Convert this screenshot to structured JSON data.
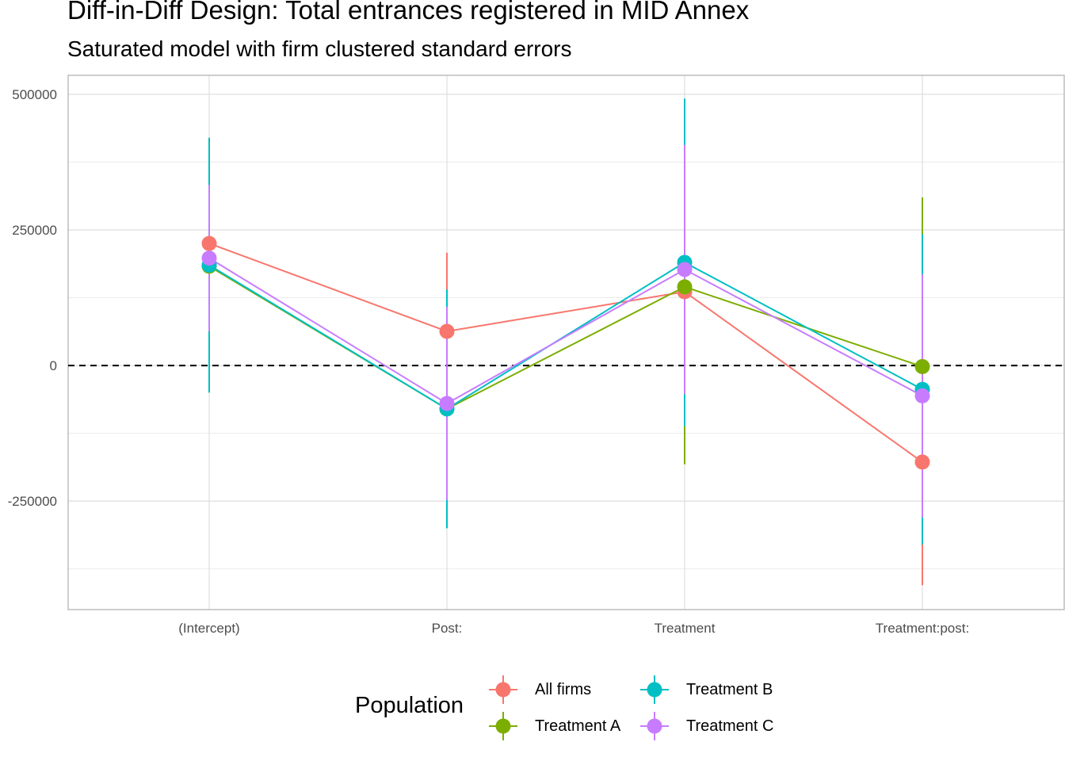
{
  "chart_data": {
    "type": "line",
    "title": "Diff-in-Diff Design: Total entrances registered in MID Annex",
    "subtitle": "Saturated model with firm clustered standard errors",
    "xlabel": "",
    "ylabel": "",
    "categories": [
      "(Intercept)",
      "Post:",
      "Treatment",
      "Treatment:post:"
    ],
    "y_ticks": [
      500000,
      250000,
      0,
      -250000
    ],
    "y_tick_labels": [
      "500000",
      "250000",
      "0",
      "-250000"
    ],
    "ylim": [
      -450000,
      535000
    ],
    "reference_line": {
      "y": 0,
      "style": "dashed",
      "color": "#000000"
    },
    "grid": true,
    "legend": {
      "title": "Population",
      "position": "bottom"
    },
    "series": [
      {
        "name": "All firms",
        "color": "#F8766D",
        "values": [
          225000,
          63000,
          136000,
          -178000
        ],
        "lower": [
          117000,
          -83000,
          -137000,
          -405000
        ],
        "upper": [
          332000,
          208000,
          409000,
          48000
        ]
      },
      {
        "name": "Treatment A",
        "color": "#7CAE00",
        "values": [
          183000,
          -80000,
          145000,
          -2000
        ],
        "lower": [
          94000,
          -163000,
          -182000,
          -195000
        ],
        "upper": [
          272000,
          3000,
          472000,
          310000
        ]
      },
      {
        "name": "Treatment B",
        "color": "#00BFC4",
        "values": [
          185000,
          -80000,
          190000,
          -44000
        ],
        "lower": [
          -50000,
          -300000,
          -112000,
          -330000
        ],
        "upper": [
          420000,
          140000,
          492000,
          242000
        ]
      },
      {
        "name": "Treatment C",
        "color": "#C77CFF",
        "values": [
          198000,
          -70000,
          177000,
          -56000
        ],
        "lower": [
          63000,
          -248000,
          -53000,
          -280000
        ],
        "upper": [
          333000,
          108000,
          407000,
          168000
        ]
      }
    ]
  }
}
